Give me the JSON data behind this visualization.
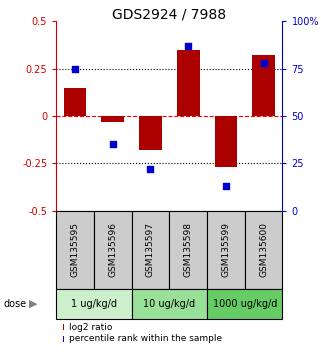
{
  "title": "GDS2924 / 7988",
  "samples": [
    "GSM135595",
    "GSM135596",
    "GSM135597",
    "GSM135598",
    "GSM135599",
    "GSM135600"
  ],
  "log2_ratio": [
    0.15,
    -0.03,
    -0.18,
    0.35,
    -0.27,
    0.32
  ],
  "percentile_rank": [
    75,
    35,
    22,
    87,
    13,
    78
  ],
  "dose_groups": [
    {
      "label": "1 ug/kg/d",
      "samples": [
        0,
        1
      ],
      "color": "#ccf0cc"
    },
    {
      "label": "10 ug/kg/d",
      "samples": [
        2,
        3
      ],
      "color": "#99e099"
    },
    {
      "label": "1000 ug/kg/d",
      "samples": [
        4,
        5
      ],
      "color": "#66cc66"
    }
  ],
  "bar_color": "#aa0000",
  "dot_color": "#0000cc",
  "left_axis_color": "#cc0000",
  "right_axis_color": "#0000cc",
  "ylim": [
    -0.5,
    0.5
  ],
  "yticks_left": [
    -0.5,
    -0.25,
    0,
    0.25,
    0.5
  ],
  "yticks_right": [
    0,
    25,
    50,
    75,
    100
  ],
  "background_color": "#ffffff",
  "sample_box_color": "#cccccc",
  "bar_width": 0.6,
  "dot_size": 18,
  "title_fontsize": 10,
  "tick_fontsize": 7,
  "sample_fontsize": 6.5,
  "dose_label_fontsize": 7,
  "legend_fontsize": 6.5
}
